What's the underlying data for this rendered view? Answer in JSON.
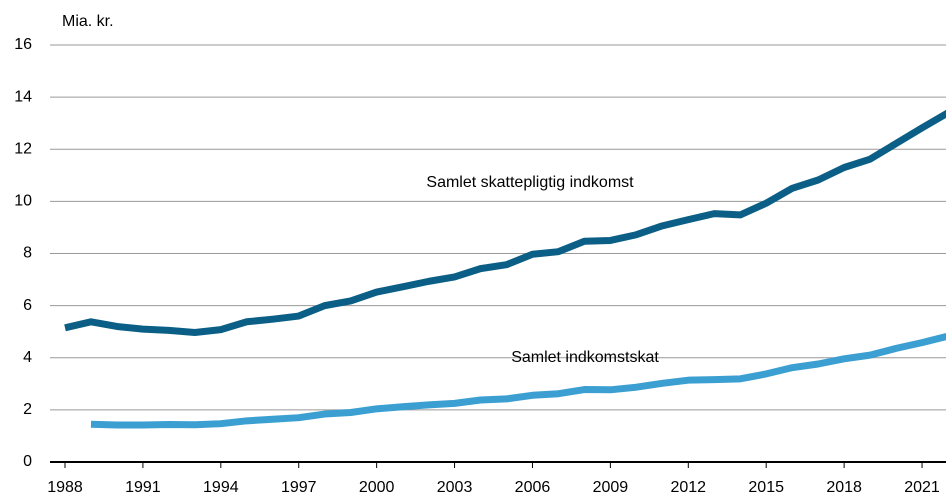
{
  "chart_data": {
    "type": "line",
    "y_label": "Mia. kr.",
    "x": [
      1988,
      1989,
      1990,
      1991,
      1992,
      1993,
      1994,
      1995,
      1996,
      1997,
      1998,
      1999,
      2000,
      2001,
      2002,
      2003,
      2004,
      2005,
      2006,
      2007,
      2008,
      2009,
      2010,
      2011,
      2012,
      2013,
      2014,
      2015,
      2016,
      2017,
      2018,
      2019,
      2020,
      2021,
      2022
    ],
    "series": [
      {
        "name": "Samlet skattepligtig indkomst",
        "color": "#0b5f86",
        "values": [
          5.15,
          5.38,
          5.2,
          5.1,
          5.05,
          4.97,
          5.08,
          5.38,
          5.48,
          5.6,
          6.0,
          6.18,
          6.52,
          6.72,
          6.93,
          7.1,
          7.42,
          7.57,
          7.97,
          8.07,
          8.47,
          8.5,
          8.72,
          9.06,
          9.3,
          9.53,
          9.48,
          9.93,
          10.5,
          10.82,
          11.3,
          11.62,
          12.22,
          12.82,
          13.4
        ]
      },
      {
        "name": "Samlet indkomstskat",
        "color": "#3b9fd1",
        "values": [
          null,
          1.45,
          1.42,
          1.42,
          1.44,
          1.43,
          1.47,
          1.58,
          1.64,
          1.7,
          1.84,
          1.9,
          2.04,
          2.12,
          2.19,
          2.25,
          2.38,
          2.42,
          2.56,
          2.62,
          2.78,
          2.77,
          2.87,
          3.02,
          3.14,
          3.16,
          3.19,
          3.38,
          3.62,
          3.76,
          3.96,
          4.1,
          4.36,
          4.58,
          4.83
        ]
      }
    ],
    "xlim": [
      1988,
      2022
    ],
    "xticks": [
      1988,
      1991,
      1994,
      1997,
      2000,
      2003,
      2006,
      2009,
      2012,
      2015,
      2018,
      2021
    ],
    "ylim": [
      0,
      16
    ],
    "yticks": [
      0,
      2,
      4,
      6,
      8,
      10,
      12,
      14,
      16
    ],
    "grid": true
  }
}
